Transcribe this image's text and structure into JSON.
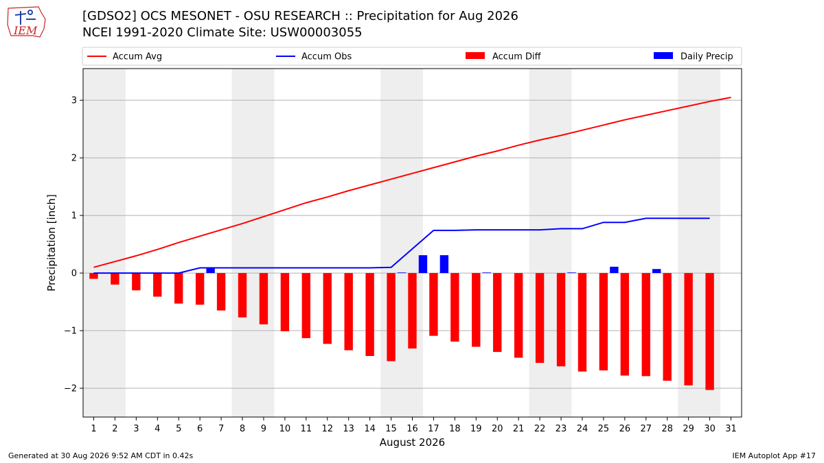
{
  "header": {
    "title_line1": "[GDSO2] OCS MESONET - OSU RESEARCH :: Precipitation for Aug 2026",
    "title_line2": "NCEI 1991-2020 Climate Site: USW00003055",
    "logo_text": "IEM"
  },
  "footer": {
    "generated": "Generated at 30 Aug 2026 9:52 AM CDT in 0.42s",
    "app": "IEM Autoplot App #17"
  },
  "chart_data": {
    "type": "bar",
    "xlabel": "August 2026",
    "ylabel": "Precipitation [inch]",
    "xlim": [
      0.5,
      31.5
    ],
    "ylim": [
      -2.5,
      3.55
    ],
    "yticks": [
      -2,
      -1,
      0,
      1,
      2,
      3
    ],
    "ytick_labels": [
      "−2",
      "−1",
      "0",
      "1",
      "2",
      "3"
    ],
    "x_ticks": [
      1,
      2,
      3,
      4,
      5,
      6,
      7,
      8,
      9,
      10,
      11,
      12,
      13,
      14,
      15,
      16,
      17,
      18,
      19,
      20,
      21,
      22,
      23,
      24,
      25,
      26,
      27,
      28,
      29,
      30,
      31
    ],
    "weekend_shading": [
      [
        0.5,
        2.5
      ],
      [
        7.5,
        9.5
      ],
      [
        14.5,
        16.5
      ],
      [
        21.5,
        23.5
      ],
      [
        28.5,
        30.5
      ]
    ],
    "grid": "horizontal",
    "legend_placement": "top",
    "colors": {
      "avg": "#ff0000",
      "obs": "#0000ff",
      "diff": "#ff0000",
      "daily": "#0000ff",
      "shade": "#eeeeee"
    },
    "legend": [
      "Accum Avg",
      "Accum Obs",
      "Accum Diff",
      "Daily Precip"
    ],
    "days": [
      1,
      2,
      3,
      4,
      5,
      6,
      7,
      8,
      9,
      10,
      11,
      12,
      13,
      14,
      15,
      16,
      17,
      18,
      19,
      20,
      21,
      22,
      23,
      24,
      25,
      26,
      27,
      28,
      29,
      30,
      31
    ],
    "accum_avg": [
      0.1,
      0.2,
      0.3,
      0.41,
      0.53,
      0.64,
      0.75,
      0.86,
      0.98,
      1.1,
      1.22,
      1.32,
      1.43,
      1.53,
      1.63,
      1.73,
      1.83,
      1.93,
      2.03,
      2.12,
      2.22,
      2.31,
      2.39,
      2.48,
      2.57,
      2.66,
      2.74,
      2.82,
      2.9,
      2.98,
      3.05
    ],
    "accum_obs_days": [
      1,
      2,
      3,
      4,
      5,
      6,
      7,
      8,
      9,
      10,
      11,
      12,
      13,
      14,
      15,
      16,
      17,
      18,
      19,
      20,
      21,
      22,
      23,
      24,
      25,
      26,
      27,
      28,
      29,
      30
    ],
    "accum_obs": [
      0.0,
      0.0,
      0.0,
      0.0,
      0.0,
      0.09,
      0.09,
      0.09,
      0.09,
      0.09,
      0.09,
      0.09,
      0.09,
      0.09,
      0.1,
      0.42,
      0.74,
      0.74,
      0.75,
      0.75,
      0.75,
      0.75,
      0.77,
      0.77,
      0.88,
      0.88,
      0.95,
      0.95,
      0.95,
      0.95
    ],
    "accum_diff_days": [
      1,
      2,
      3,
      4,
      5,
      6,
      7,
      8,
      9,
      10,
      11,
      12,
      13,
      14,
      15,
      16,
      17,
      18,
      19,
      20,
      21,
      22,
      23,
      24,
      25,
      26,
      27,
      28,
      29,
      30
    ],
    "accum_diff": [
      -0.1,
      -0.2,
      -0.3,
      -0.41,
      -0.53,
      -0.55,
      -0.65,
      -0.77,
      -0.89,
      -1.01,
      -1.13,
      -1.23,
      -1.34,
      -1.44,
      -1.53,
      -1.31,
      -1.09,
      -1.19,
      -1.28,
      -1.37,
      -1.47,
      -1.56,
      -1.62,
      -1.71,
      -1.69,
      -1.78,
      -1.79,
      -1.87,
      -1.95,
      -2.03
    ],
    "daily_precip_days": [
      1,
      2,
      3,
      4,
      5,
      6,
      7,
      8,
      9,
      10,
      11,
      12,
      13,
      14,
      15,
      16,
      17,
      18,
      19,
      20,
      21,
      22,
      23,
      24,
      25,
      26,
      27,
      28,
      29,
      30
    ],
    "daily_precip": [
      0,
      0,
      0,
      0,
      0,
      0.09,
      0,
      0,
      0,
      0,
      0,
      0,
      0,
      0,
      0.01,
      0.31,
      0.31,
      0,
      0.01,
      0,
      0,
      0,
      0.01,
      0,
      0.11,
      0,
      0.07,
      0,
      0,
      0
    ]
  }
}
